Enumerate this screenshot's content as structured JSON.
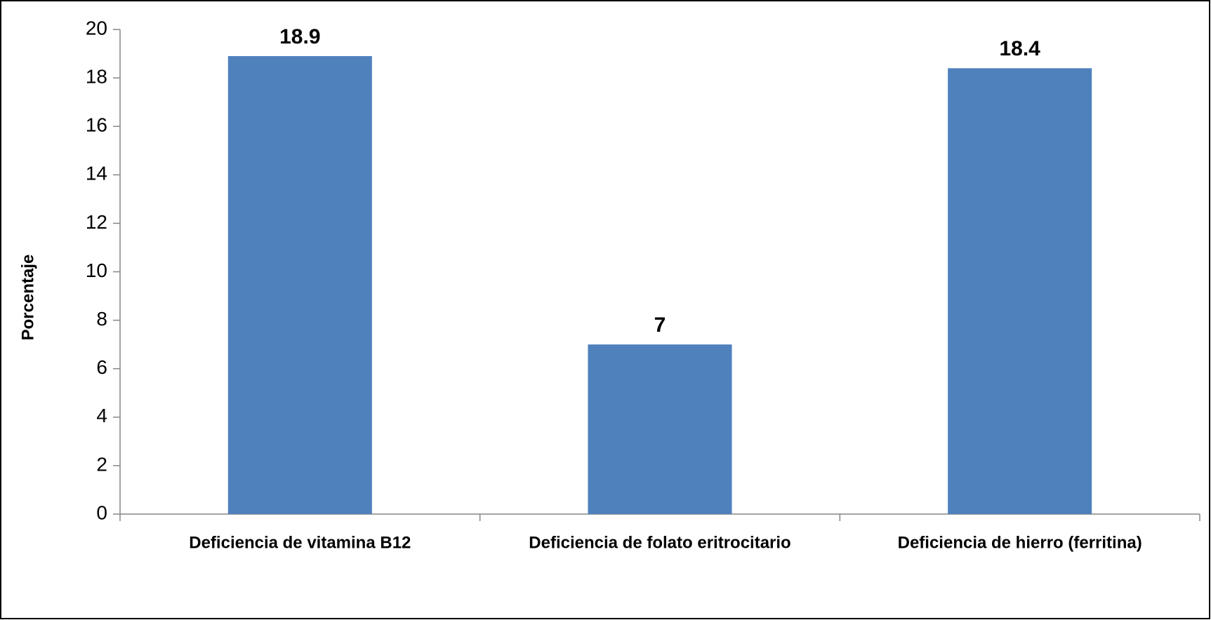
{
  "chart_data": {
    "type": "bar",
    "y_label": "Porcentaje",
    "categories": [
      "Deficiencia de vitamina B12",
      "Deficiencia de folato eritrocitario",
      "Deficiencia de hierro (ferritina)"
    ],
    "values": [
      18.9,
      7,
      18.4
    ],
    "color": "#4f81bd",
    "ylim": [
      0,
      20
    ],
    "yticks": [
      0,
      2,
      4,
      6,
      8,
      10,
      12,
      14,
      16,
      18,
      20
    ],
    "grid": false
  }
}
